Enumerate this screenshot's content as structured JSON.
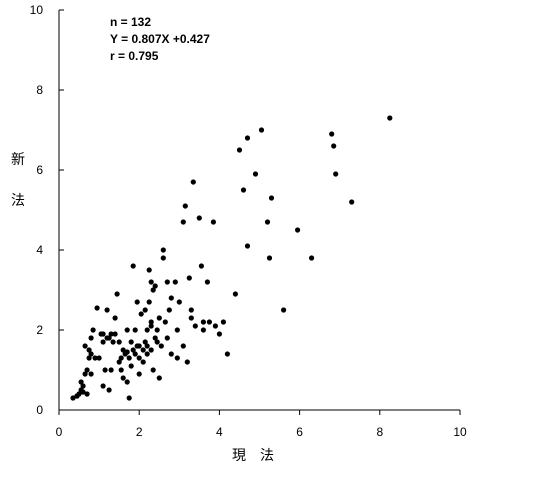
{
  "chart_data": {
    "type": "scatter",
    "xlabel": "現　法",
    "ylabel": [
      "新",
      "法"
    ],
    "xlim": [
      0,
      10
    ],
    "ylim": [
      0,
      10
    ],
    "x_ticks": [
      "0",
      "2",
      "4",
      "6",
      "8",
      "10"
    ],
    "y_ticks": [
      "0",
      "2",
      "4",
      "6",
      "8",
      "10"
    ],
    "grid": false,
    "stats": {
      "n": "n = 132",
      "equation": "Y = 0.807X +0.427",
      "r": "r = 0.795"
    },
    "marker_color": "#000000",
    "points": [
      [
        0.35,
        0.3
      ],
      [
        0.45,
        0.35
      ],
      [
        0.5,
        0.4
      ],
      [
        0.55,
        0.5
      ],
      [
        0.6,
        0.45
      ],
      [
        0.55,
        0.7
      ],
      [
        0.65,
        0.9
      ],
      [
        0.7,
        1.0
      ],
      [
        0.6,
        0.6
      ],
      [
        0.7,
        0.4
      ],
      [
        0.75,
        1.3
      ],
      [
        0.65,
        1.6
      ],
      [
        0.75,
        1.5
      ],
      [
        0.8,
        1.8
      ],
      [
        0.85,
        2.0
      ],
      [
        0.8,
        1.4
      ],
      [
        0.9,
        1.3
      ],
      [
        0.95,
        2.55
      ],
      [
        1.0,
        1.3
      ],
      [
        1.05,
        1.9
      ],
      [
        1.1,
        1.7
      ],
      [
        1.1,
        0.6
      ],
      [
        1.15,
        1.0
      ],
      [
        1.2,
        2.5
      ],
      [
        1.25,
        0.5
      ],
      [
        1.25,
        1.8
      ],
      [
        1.3,
        1.9
      ],
      [
        1.3,
        1.0
      ],
      [
        1.35,
        1.7
      ],
      [
        1.4,
        2.3
      ],
      [
        1.4,
        1.9
      ],
      [
        1.45,
        2.9
      ],
      [
        1.5,
        1.7
      ],
      [
        1.5,
        1.2
      ],
      [
        1.55,
        1.0
      ],
      [
        1.6,
        1.5
      ],
      [
        1.6,
        0.8
      ],
      [
        1.65,
        1.4
      ],
      [
        1.7,
        2.0
      ],
      [
        1.7,
        0.7
      ],
      [
        1.75,
        0.3
      ],
      [
        1.75,
        1.3
      ],
      [
        1.8,
        1.7
      ],
      [
        1.8,
        1.1
      ],
      [
        1.85,
        1.5
      ],
      [
        1.85,
        3.6
      ],
      [
        1.9,
        1.4
      ],
      [
        1.9,
        2.0
      ],
      [
        1.95,
        2.7
      ],
      [
        2.0,
        1.6
      ],
      [
        2.0,
        1.3
      ],
      [
        2.0,
        0.9
      ],
      [
        2.05,
        2.4
      ],
      [
        2.1,
        1.5
      ],
      [
        2.1,
        1.2
      ],
      [
        2.15,
        1.7
      ],
      [
        2.2,
        2.0
      ],
      [
        2.2,
        1.6
      ],
      [
        2.25,
        3.5
      ],
      [
        2.25,
        2.7
      ],
      [
        2.3,
        3.2
      ],
      [
        2.3,
        2.2
      ],
      [
        2.3,
        1.5
      ],
      [
        2.35,
        3.0
      ],
      [
        2.35,
        1.0
      ],
      [
        2.4,
        1.8
      ],
      [
        2.4,
        3.1
      ],
      [
        2.45,
        2.0
      ],
      [
        2.45,
        1.7
      ],
      [
        2.5,
        0.8
      ],
      [
        2.5,
        2.3
      ],
      [
        2.55,
        1.6
      ],
      [
        2.6,
        4.0
      ],
      [
        2.6,
        3.8
      ],
      [
        2.65,
        2.2
      ],
      [
        2.7,
        3.2
      ],
      [
        2.75,
        2.5
      ],
      [
        2.8,
        1.4
      ],
      [
        2.8,
        2.8
      ],
      [
        2.9,
        3.2
      ],
      [
        2.95,
        1.3
      ],
      [
        2.95,
        2.0
      ],
      [
        3.0,
        2.7
      ],
      [
        3.1,
        1.6
      ],
      [
        3.1,
        4.7
      ],
      [
        3.15,
        5.1
      ],
      [
        3.2,
        1.2
      ],
      [
        3.25,
        3.3
      ],
      [
        3.3,
        2.3
      ],
      [
        3.3,
        2.5
      ],
      [
        3.35,
        5.7
      ],
      [
        3.4,
        2.1
      ],
      [
        3.5,
        4.8
      ],
      [
        3.55,
        3.6
      ],
      [
        3.6,
        2.0
      ],
      [
        3.6,
        2.2
      ],
      [
        3.7,
        3.2
      ],
      [
        3.75,
        2.2
      ],
      [
        3.85,
        4.7
      ],
      [
        3.9,
        2.1
      ],
      [
        4.0,
        1.9
      ],
      [
        4.1,
        2.2
      ],
      [
        4.2,
        1.4
      ],
      [
        4.4,
        2.9
      ],
      [
        4.5,
        6.5
      ],
      [
        4.6,
        5.5
      ],
      [
        4.7,
        6.8
      ],
      [
        4.7,
        4.1
      ],
      [
        4.9,
        5.9
      ],
      [
        5.05,
        7.0
      ],
      [
        5.2,
        4.7
      ],
      [
        5.25,
        3.8
      ],
      [
        5.3,
        5.3
      ],
      [
        5.6,
        2.5
      ],
      [
        5.95,
        4.5
      ],
      [
        6.3,
        3.8
      ],
      [
        6.8,
        6.9
      ],
      [
        6.85,
        6.6
      ],
      [
        6.9,
        5.9
      ],
      [
        7.3,
        5.2
      ],
      [
        8.25,
        7.3
      ],
      [
        0.45,
        0.35
      ],
      [
        1.2,
        1.8
      ],
      [
        2.2,
        1.4
      ],
      [
        1.7,
        1.45
      ],
      [
        2.3,
        2.1
      ],
      [
        1.1,
        1.9
      ],
      [
        1.95,
        1.6
      ],
      [
        2.15,
        2.5
      ],
      [
        0.8,
        0.9
      ],
      [
        1.55,
        1.3
      ],
      [
        2.7,
        1.8
      ]
    ]
  }
}
